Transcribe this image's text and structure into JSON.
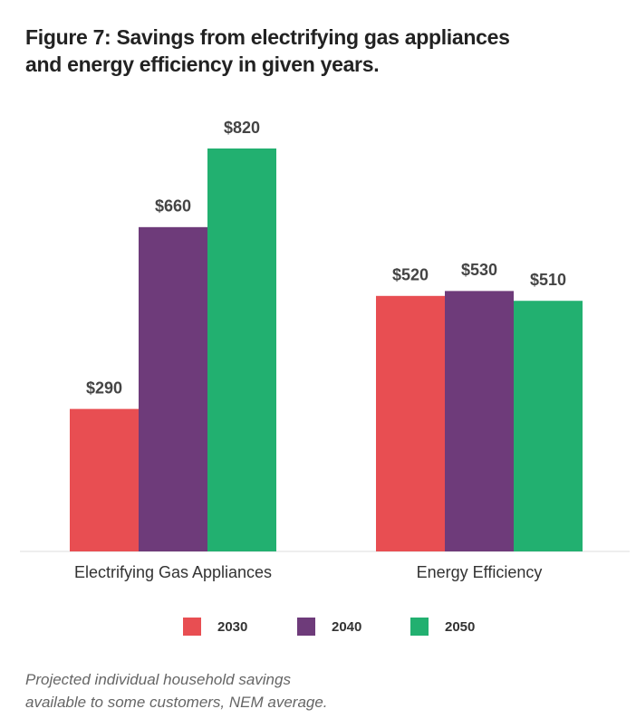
{
  "chart_data": {
    "type": "bar",
    "title": "Figure 7: Savings from electrifying gas appliances and energy efficiency in given years.",
    "categories": [
      "Electrifying Gas Appliances",
      "Energy Efficiency"
    ],
    "series": [
      {
        "name": "2030",
        "color": "#e84e52",
        "values": [
          290,
          520
        ],
        "value_labels": [
          "$290",
          "$520"
        ]
      },
      {
        "name": "2040",
        "color": "#6e3b7a",
        "values": [
          660,
          530
        ],
        "value_labels": [
          "$660",
          "$530"
        ]
      },
      {
        "name": "2050",
        "color": "#22b070",
        "values": [
          820,
          510
        ],
        "value_labels": [
          "$820",
          "$510"
        ]
      }
    ],
    "legend": "bottom",
    "caption": "Projected individual household savings available to some customers, NEM average."
  }
}
